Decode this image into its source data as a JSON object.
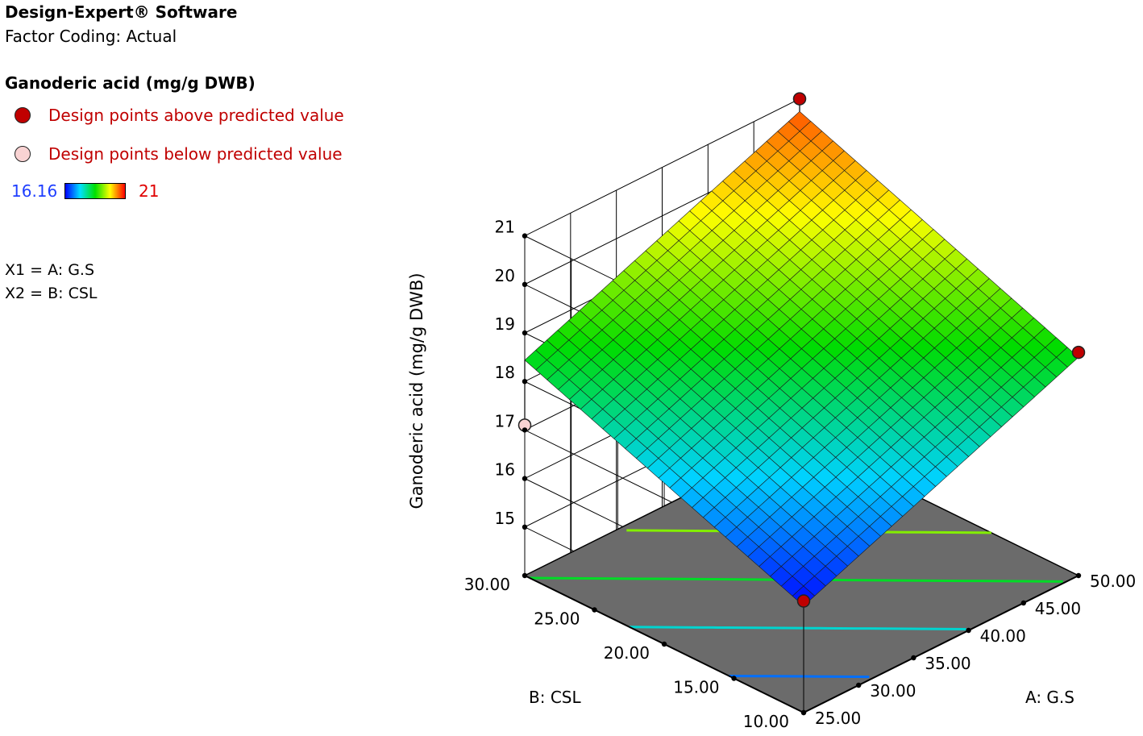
{
  "header": {
    "software": "Design-Expert® Software",
    "coding": "Factor Coding: Actual"
  },
  "legend": {
    "response": "Ganoderic acid (mg/g DWB)",
    "above_label": "Design points above predicted value",
    "below_label": "Design points below predicted value",
    "above_color": "#c00000",
    "below_color": "#f9d3d3",
    "label_color": "#c00000",
    "scale_min": "16.16",
    "scale_max": "21",
    "scale_min_color": "#1f3fff",
    "scale_max_color": "#e00000"
  },
  "factors": {
    "x1": "X1 = A: G.S",
    "x2": "X2 = B: CSL"
  },
  "chart_data": {
    "type": "surface3d",
    "zlabel": "Ganoderic acid  (mg/g DWB)",
    "xlabel": "A: G.S",
    "ylabel": "B: CSL",
    "x_range": [
      25,
      50
    ],
    "y_range": [
      10,
      30
    ],
    "z_range": [
      14,
      21
    ],
    "x_ticks": [
      "25.00",
      "30.00",
      "35.00",
      "40.00",
      "45.00",
      "50.00"
    ],
    "y_ticks": [
      "10.00",
      "15.00",
      "20.00",
      "25.00",
      "30.00"
    ],
    "z_ticks": [
      "15",
      "16",
      "17",
      "18",
      "19",
      "20",
      "21"
    ],
    "surface_model": {
      "intercept": 16.2,
      "coef_a_per_unit": 0.092,
      "coef_b_per_unit": 0.112,
      "ref_a": 25,
      "ref_b": 10
    },
    "surface_corners": [
      {
        "a": 25,
        "b": 10,
        "z": 16.2
      },
      {
        "a": 50,
        "b": 10,
        "z": 18.5
      },
      {
        "a": 25,
        "b": 30,
        "z": 18.44
      },
      {
        "a": 50,
        "b": 30,
        "z": 20.74
      }
    ],
    "design_points": [
      {
        "a": 50,
        "b": 30,
        "z": 21.0,
        "position": "above"
      },
      {
        "a": 50,
        "b": 10,
        "z": 18.6,
        "position": "above"
      },
      {
        "a": 25,
        "b": 10,
        "z": 16.3,
        "position": "above"
      },
      {
        "a": 25,
        "b": 30,
        "z": 17.1,
        "position": "below"
      }
    ],
    "contour_levels": [
      16.8,
      17.6,
      18.4,
      19.2
    ],
    "grid": true
  }
}
